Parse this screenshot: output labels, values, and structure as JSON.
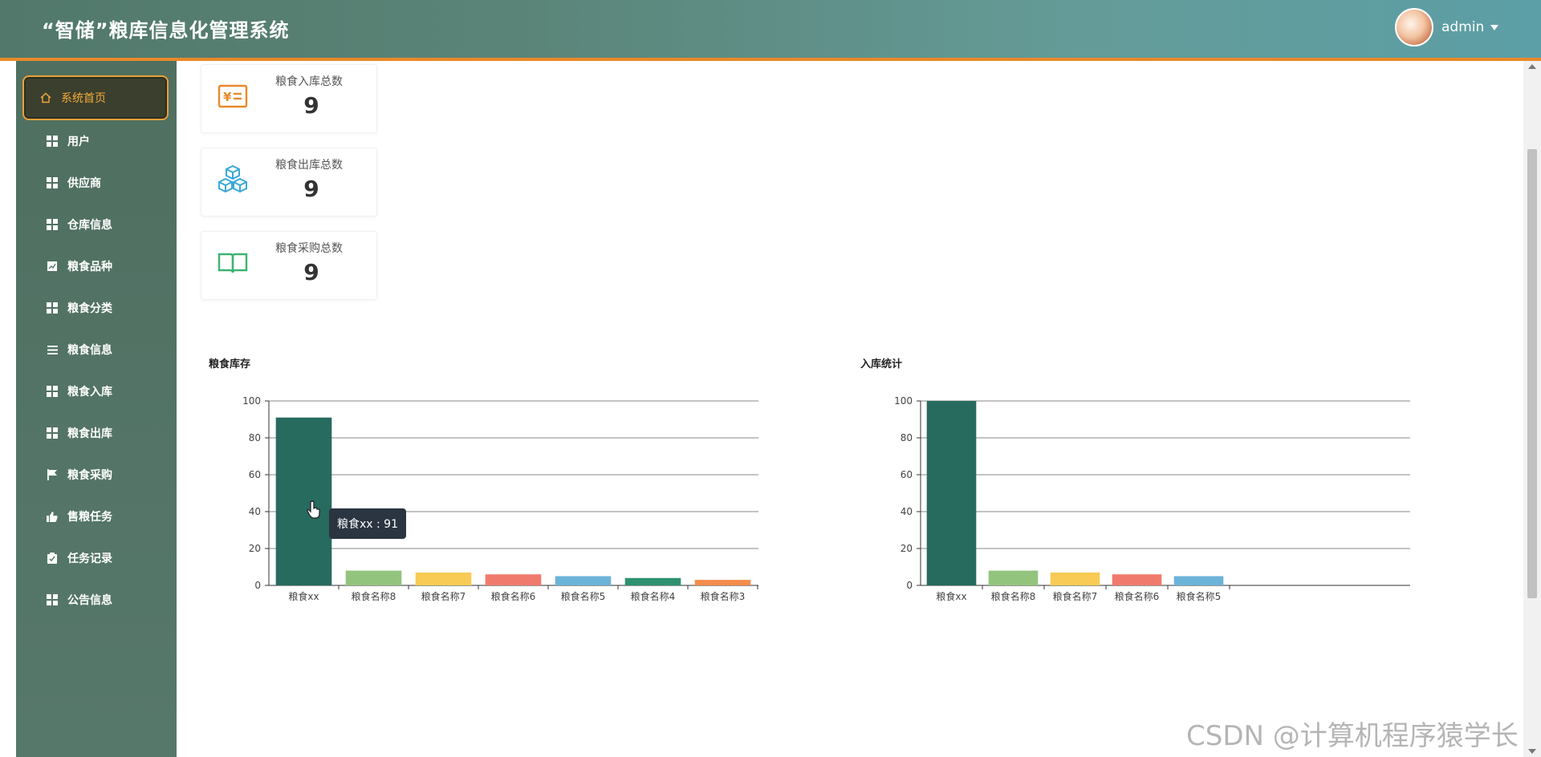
{
  "header": {
    "title": "“智储”粮库信息化管理系统",
    "username": "admin",
    "accent_color": "#e8892a"
  },
  "sidebar": {
    "items": [
      {
        "label": "系统首页",
        "icon": "home-icon",
        "active": true
      },
      {
        "label": "用户",
        "icon": "grid-icon"
      },
      {
        "label": "供应商",
        "icon": "grid-icon"
      },
      {
        "label": "仓库信息",
        "icon": "grid-icon"
      },
      {
        "label": "粮食品种",
        "icon": "chart-icon"
      },
      {
        "label": "粮食分类",
        "icon": "grid-icon"
      },
      {
        "label": "粮食信息",
        "icon": "list-icon"
      },
      {
        "label": "粮食入库",
        "icon": "grid-icon"
      },
      {
        "label": "粮食出库",
        "icon": "grid-icon"
      },
      {
        "label": "粮食采购",
        "icon": "flag-icon"
      },
      {
        "label": "售粮任务",
        "icon": "thumbs-up-icon"
      },
      {
        "label": "任务记录",
        "icon": "clipboard-icon"
      },
      {
        "label": "公告信息",
        "icon": "grid-icon"
      }
    ]
  },
  "stats": [
    {
      "label": "粮食入库总数",
      "value": "9",
      "icon": "yen-receipt-icon",
      "color": "#e8892a"
    },
    {
      "label": "粮食出库总数",
      "value": "9",
      "icon": "cubes-icon",
      "color": "#3aa8d8"
    },
    {
      "label": "粮食采购总数",
      "value": "9",
      "icon": "book-icon",
      "color": "#3cb371"
    }
  ],
  "tooltip": {
    "text": "粮食xx : 91"
  },
  "watermark": "CSDN @计算机程序猿学长",
  "chart_data": [
    {
      "type": "bar",
      "title": "粮食库存",
      "categories": [
        "粮食xx",
        "粮食名称8",
        "粮食名称7",
        "粮食名称6",
        "粮食名称5",
        "粮食名称4",
        "粮食名称3"
      ],
      "values": [
        91,
        8,
        7,
        6,
        5,
        4,
        3
      ],
      "colors": [
        "#266b5e",
        "#93c47d",
        "#f8cb55",
        "#f07b6d",
        "#6cb3d9",
        "#2e9270",
        "#f48c4c"
      ],
      "yticks": [
        0,
        20,
        40,
        60,
        80,
        100
      ],
      "ylim": [
        0,
        100
      ],
      "grid": true
    },
    {
      "type": "bar",
      "title": "入库统计",
      "categories": [
        "粮食xx",
        "粮食名称8",
        "粮食名称7",
        "粮食名称6",
        "粮食名称5"
      ],
      "values": [
        100,
        8,
        7,
        6,
        5
      ],
      "colors": [
        "#266b5e",
        "#93c47d",
        "#f8cb55",
        "#f07b6d",
        "#6cb3d9"
      ],
      "yticks": [
        0,
        20,
        40,
        60,
        80,
        100
      ],
      "ylim": [
        0,
        100
      ],
      "grid": true
    }
  ]
}
